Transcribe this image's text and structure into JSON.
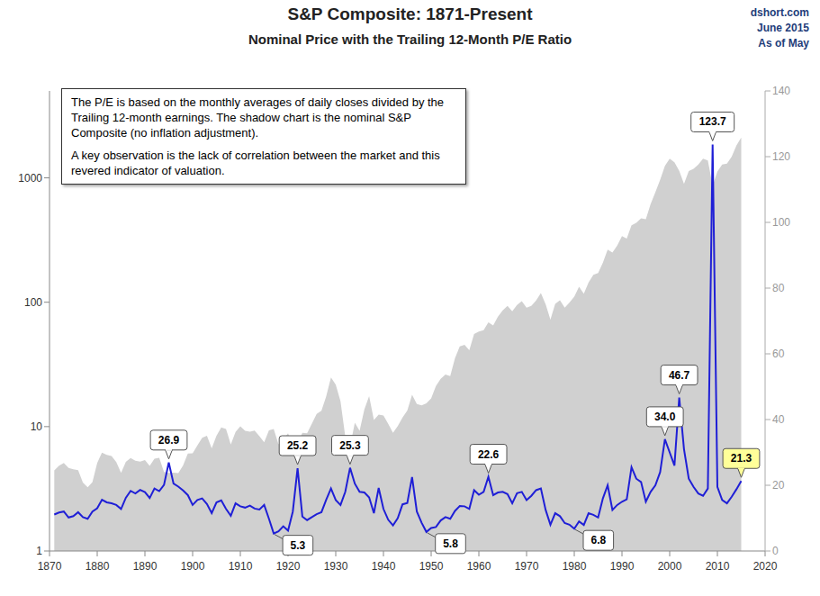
{
  "chart_data": {
    "type": "line",
    "title": "S&P Composite: 1871-Present",
    "subtitle": "Nominal Price with the Trailing 12-Month P/E Ratio",
    "source": [
      "dshort.com",
      "June 2015",
      "As of May"
    ],
    "note": [
      "The P/E is based on the monthly  averages of daily closes divided by the Trailing 12-month earnings. The shadow chart is the nominal S&P Composite (no inflation adjustment).",
      "A key observation is the lack of correlation between the market and this revered indicator of valuation."
    ],
    "log": "y",
    "grid": false,
    "xlim": [
      1870,
      2020
    ],
    "xticks": [
      1870,
      1880,
      1890,
      1900,
      1910,
      1920,
      1930,
      1940,
      1950,
      1960,
      1970,
      1980,
      1990,
      2000,
      2010,
      2020
    ],
    "ylim": [
      1,
      5000
    ],
    "yticks": [
      1,
      10,
      100,
      1000
    ],
    "y2lim": [
      0,
      140
    ],
    "y2ticks": [
      0,
      20,
      40,
      60,
      80,
      100,
      120,
      140
    ],
    "x": [
      1871,
      1872,
      1873,
      1874,
      1875,
      1876,
      1877,
      1878,
      1879,
      1880,
      1881,
      1882,
      1883,
      1884,
      1885,
      1886,
      1887,
      1888,
      1889,
      1890,
      1891,
      1892,
      1893,
      1894,
      1895,
      1896,
      1897,
      1898,
      1899,
      1900,
      1901,
      1902,
      1903,
      1904,
      1905,
      1906,
      1907,
      1908,
      1909,
      1910,
      1911,
      1912,
      1913,
      1914,
      1915,
      1916,
      1917,
      1918,
      1919,
      1920,
      1921,
      1922,
      1923,
      1924,
      1925,
      1926,
      1927,
      1928,
      1929,
      1930,
      1931,
      1932,
      1933,
      1934,
      1935,
      1936,
      1937,
      1938,
      1939,
      1940,
      1941,
      1942,
      1943,
      1944,
      1945,
      1946,
      1947,
      1948,
      1949,
      1950,
      1951,
      1952,
      1953,
      1954,
      1955,
      1956,
      1957,
      1958,
      1959,
      1960,
      1961,
      1962,
      1963,
      1964,
      1965,
      1966,
      1967,
      1968,
      1969,
      1970,
      1971,
      1972,
      1973,
      1974,
      1975,
      1976,
      1977,
      1978,
      1979,
      1980,
      1981,
      1982,
      1983,
      1984,
      1985,
      1986,
      1987,
      1988,
      1989,
      1990,
      1991,
      1992,
      1993,
      1994,
      1995,
      1996,
      1997,
      1998,
      1999,
      2000,
      2001,
      2002,
      2003,
      2004,
      2005,
      2006,
      2007,
      2008,
      2009,
      2010,
      2011,
      2012,
      2013,
      2014,
      2015
    ],
    "series": [
      {
        "type": "area",
        "color": "#d0d0d0",
        "values": [
          4.44,
          4.86,
          5.11,
          4.66,
          4.54,
          4.46,
          3.55,
          3.25,
          3.58,
          5.11,
          6.19,
          5.92,
          5.81,
          5.18,
          4.24,
          5.2,
          5.58,
          5.31,
          5.24,
          5.38,
          4.84,
          5.51,
          5.61,
          4.32,
          4.25,
          4.27,
          4.22,
          4.88,
          6.08,
          6.1,
          7.07,
          8.12,
          8.46,
          6.68,
          8.43,
          9.87,
          9.56,
          7.19,
          9.06,
          10.08,
          9.27,
          9.12,
          9.3,
          8.37,
          7.48,
          9.33,
          9.57,
          7.21,
          7.85,
          8.83,
          7.11,
          7.3,
          8.9,
          8.83,
          10.58,
          12.65,
          13.4,
          17.53,
          24.86,
          21.71,
          15.98,
          8.3,
          6.89,
          10.74,
          9.26,
          13.76,
          17.59,
          11.31,
          12.5,
          12.3,
          10.55,
          8.93,
          10.09,
          11.85,
          13.49,
          18.02,
          15.21,
          14.83,
          15.36,
          16.88,
          21.21,
          24.19,
          26.18,
          25.46,
          35.6,
          44.15,
          45.43,
          41.12,
          55.62,
          58.03,
          59.72,
          69.07,
          65.06,
          76.45,
          86.12,
          93.32,
          84.45,
          95.04,
          102.0,
          90.31,
          93.49,
          103.3,
          118.4,
          96.11,
          72.56,
          96.86,
          103.8,
          90.25,
          99.71,
          110.9,
          133.0,
          117.3,
          144.3,
          166.4,
          171.6,
          208.2,
          264.5,
          250.5,
          285.4,
          339.97,
          325.5,
          416.1,
          435.2,
          472.99,
          465.25,
          614.42,
          766.22,
          963.36,
          1248.8,
          1425.6,
          1335.6,
          1140.2,
          895.8,
          1132.5,
          1181.4,
          1278.7,
          1424.2,
          1380.3,
          865.6,
          1123.6,
          1282.6,
          1300.6,
          1480.4,
          1822.4,
          2107
        ]
      },
      {
        "type": "line",
        "color": "#1f1fd6",
        "axis": "y2",
        "values": [
          11.1,
          11.7,
          12.0,
          10.2,
          10.6,
          11.8,
          10.3,
          9.8,
          12.0,
          13.0,
          15.6,
          14.8,
          14.5,
          14.0,
          12.8,
          16.2,
          18.3,
          17.5,
          18.6,
          17.9,
          16.1,
          19.0,
          18.2,
          20.1,
          26.9,
          20.5,
          19.6,
          18.4,
          17.0,
          14.0,
          15.5,
          16.0,
          14.3,
          11.5,
          14.8,
          15.4,
          12.8,
          10.7,
          14.5,
          13.6,
          13.2,
          13.8,
          12.9,
          12.6,
          14.0,
          9.8,
          5.3,
          6.0,
          7.5,
          6.2,
          12.0,
          25.2,
          10.5,
          9.4,
          10.3,
          11.2,
          11.8,
          15.6,
          19.0,
          15.5,
          14.0,
          18.0,
          25.3,
          20.5,
          18.0,
          17.8,
          16.3,
          11.5,
          19.2,
          12.8,
          9.5,
          7.8,
          10.0,
          14.2,
          14.6,
          22.5,
          12.0,
          8.6,
          5.8,
          7.0,
          7.3,
          9.3,
          10.3,
          9.8,
          12.2,
          13.7,
          13.6,
          12.8,
          18.5,
          17.1,
          18.0,
          22.6,
          17.0,
          17.8,
          18.0,
          17.3,
          14.5,
          17.6,
          18.0,
          15.5,
          16.8,
          18.5,
          19.0,
          12.5,
          8.0,
          11.5,
          10.6,
          8.5,
          8.0,
          6.8,
          9.0,
          7.9,
          11.5,
          11.0,
          10.2,
          16.0,
          20.0,
          12.5,
          14.0,
          15.0,
          15.7,
          25.5,
          22.0,
          21.0,
          15.0,
          18.0,
          20.0,
          24.0,
          34.0,
          30.0,
          26.0,
          46.7,
          31.0,
          22.0,
          19.5,
          17.5,
          16.8,
          19.0,
          123.7,
          19.5,
          15.5,
          14.5,
          16.5,
          18.8,
          21.3
        ]
      }
    ],
    "annotations": [
      {
        "x": 1895,
        "value": 26.9,
        "label": "26.9"
      },
      {
        "x": 1922,
        "value": 25.2,
        "label": "25.2"
      },
      {
        "x": 1933,
        "value": 25.3,
        "label": "25.3"
      },
      {
        "x": 1962,
        "value": 22.6,
        "label": "22.6"
      },
      {
        "x": 1999,
        "value": 34,
        "label": "34.0"
      },
      {
        "x": 2002,
        "value": 46.7,
        "label": "46.7"
      },
      {
        "x": 2009,
        "value": 123.7,
        "label": "123.7"
      },
      {
        "x": 1917,
        "value": 5.3,
        "label": "5.3"
      },
      {
        "x": 1949,
        "value": 5.8,
        "label": "5.8"
      },
      {
        "x": 1980,
        "value": 6.8,
        "label": "6.8"
      },
      {
        "x": 2015,
        "value": 21.3,
        "label": "21.3"
      }
    ]
  }
}
